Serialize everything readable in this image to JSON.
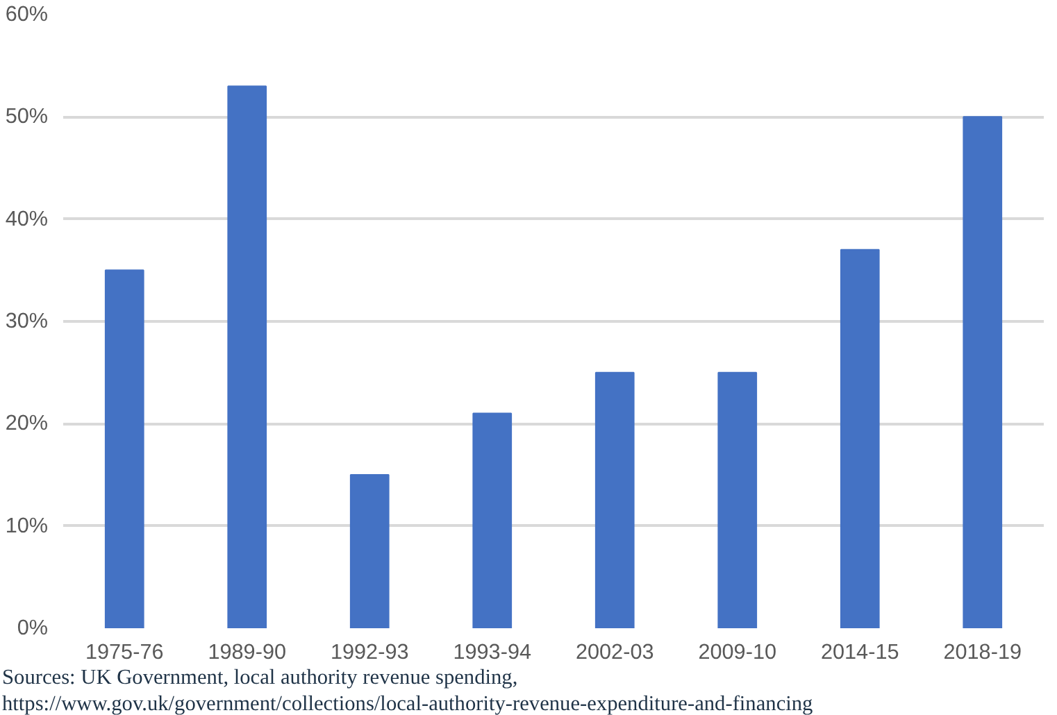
{
  "chart_data": {
    "type": "bar",
    "categories": [
      "1975-76",
      "1989-90",
      "1992-93",
      "1993-94",
      "2002-03",
      "2009-10",
      "2014-15",
      "2018-19"
    ],
    "values": [
      35,
      53,
      15,
      21,
      25,
      25,
      37,
      50
    ],
    "color": "#4472c4",
    "ylim": [
      0,
      60
    ],
    "yticks": [
      {
        "value": 0,
        "label": "0%"
      },
      {
        "value": 10,
        "label": "10%"
      },
      {
        "value": 20,
        "label": "20%"
      },
      {
        "value": 30,
        "label": "30%"
      },
      {
        "value": 40,
        "label": "40%"
      },
      {
        "value": 50,
        "label": "50%"
      },
      {
        "value": 60,
        "label": "60%"
      }
    ],
    "grid": "y",
    "annotations": [
      "Sources:  UK Government, local authority revenue spending,",
      "https://www.gov.uk/government/collections/local-authority-revenue-expenditure-and-financing"
    ]
  }
}
